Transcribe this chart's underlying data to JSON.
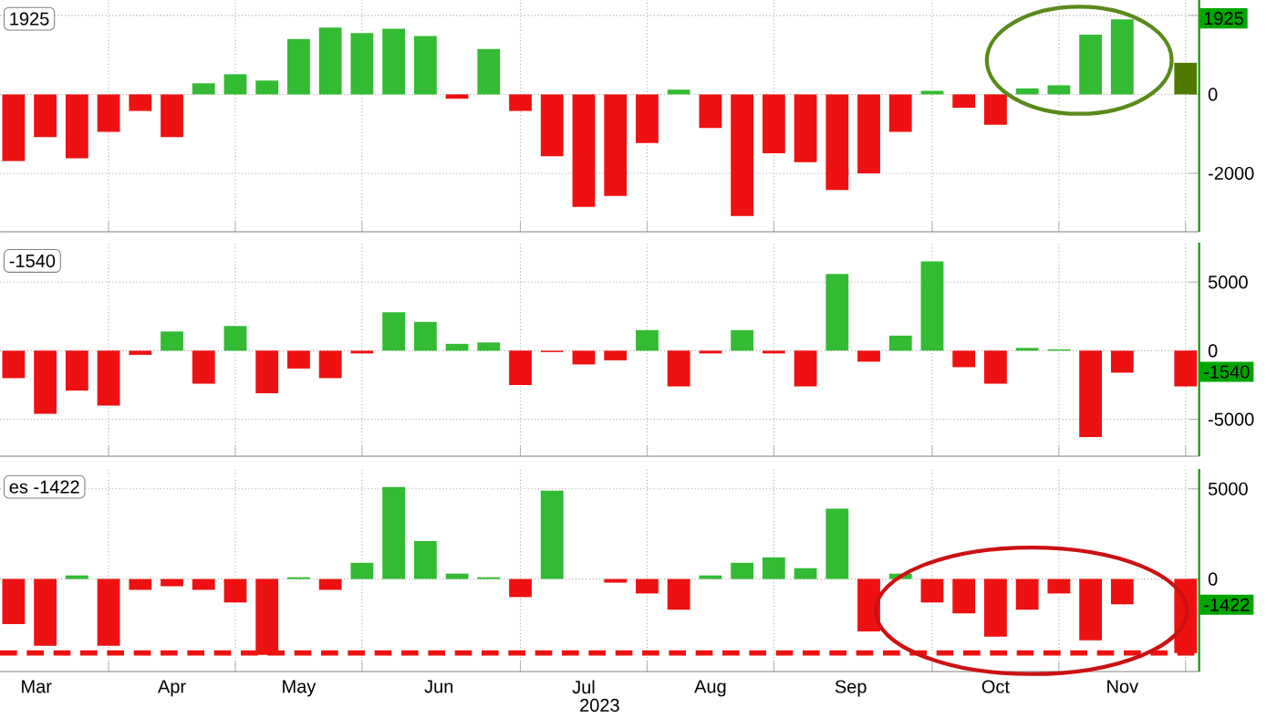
{
  "chart_data": [
    {
      "type": "bar",
      "grid": true,
      "tick_labels": "y",
      "x": [
        "2023-03-17",
        "2023-03-24",
        "2023-03-31",
        "2023-04-07",
        "2023-04-14",
        "2023-04-21",
        "2023-04-28",
        "2023-05-05",
        "2023-05-12",
        "2023-05-19",
        "2023-05-26",
        "2023-06-02",
        "2023-06-09",
        "2023-06-16",
        "2023-06-23",
        "2023-06-30",
        "2023-07-07",
        "2023-07-14",
        "2023-07-21",
        "2023-07-28",
        "2023-08-04",
        "2023-08-11",
        "2023-08-18",
        "2023-08-25",
        "2023-09-01",
        "2023-09-08",
        "2023-09-15",
        "2023-09-22",
        "2023-09-29",
        "2023-10-06",
        "2023-10-13",
        "2023-10-20",
        "2023-10-27",
        "2023-11-03",
        "2023-11-10",
        "2023-11-17",
        "2023-11-24",
        "2023-12-01"
      ],
      "values": [
        -1690,
        -1080,
        -1620,
        -950,
        -420,
        -1080,
        280,
        510,
        350,
        1400,
        1690,
        1550,
        1660,
        1480,
        -110,
        1150,
        -420,
        -1570,
        -2850,
        -2570,
        -1230,
        120,
        -850,
        -3080,
        -1490,
        -1720,
        -2420,
        -2000,
        -950,
        90,
        -340,
        -770,
        150,
        230,
        1510,
        1900,
        null,
        800
      ],
      "colors": [
        "#ee1111",
        "#ee1111",
        "#ee1111",
        "#ee1111",
        "#ee1111",
        "#ee1111",
        "#33bb33",
        "#33bb33",
        "#33bb33",
        "#33bb33",
        "#33bb33",
        "#33bb33",
        "#33bb33",
        "#33bb33",
        "#ee1111",
        "#33bb33",
        "#ee1111",
        "#ee1111",
        "#ee1111",
        "#ee1111",
        "#ee1111",
        "#33bb33",
        "#ee1111",
        "#ee1111",
        "#ee1111",
        "#ee1111",
        "#ee1111",
        "#ee1111",
        "#ee1111",
        "#33bb33",
        "#ee1111",
        "#ee1111",
        "#33bb33",
        "#33bb33",
        "#33bb33",
        "#33bb33",
        null,
        "#4f7a00"
      ],
      "xlim": [
        "2023-03-14",
        "2023-12-04"
      ],
      "xticks": [
        {
          "value": "2023-04-07",
          "label": null
        },
        {
          "value": "2023-05-05",
          "label": null
        },
        {
          "value": "2023-06-02",
          "label": null
        },
        {
          "value": "2023-07-07",
          "label": null
        },
        {
          "value": "2023-08-04",
          "label": null
        },
        {
          "value": "2023-09-01",
          "label": null
        },
        {
          "value": "2023-10-06",
          "label": null
        },
        {
          "value": "2023-11-03",
          "label": null
        },
        {
          "value": "2023-12-01",
          "label": null
        }
      ],
      "ylim": [
        -3480,
        2390
      ],
      "yticks": [
        {
          "value": 2000,
          "label": null
        },
        0,
        -2000
      ],
      "annotations": [
        "1925",
        {
          "text": "1925",
          "y": 1925
        }
      ]
    },
    {
      "type": "bar",
      "grid": true,
      "tick_labels": "y",
      "x": [
        "2023-03-17",
        "2023-03-24",
        "2023-03-31",
        "2023-04-07",
        "2023-04-14",
        "2023-04-21",
        "2023-04-28",
        "2023-05-05",
        "2023-05-12",
        "2023-05-19",
        "2023-05-26",
        "2023-06-02",
        "2023-06-09",
        "2023-06-16",
        "2023-06-23",
        "2023-06-30",
        "2023-07-07",
        "2023-07-14",
        "2023-07-21",
        "2023-07-28",
        "2023-08-04",
        "2023-08-11",
        "2023-08-18",
        "2023-08-25",
        "2023-09-01",
        "2023-09-08",
        "2023-09-15",
        "2023-09-22",
        "2023-09-29",
        "2023-10-06",
        "2023-10-13",
        "2023-10-20",
        "2023-10-27",
        "2023-11-03",
        "2023-11-10",
        "2023-11-17",
        "2023-11-24",
        "2023-12-01"
      ],
      "values": [
        -2000,
        -4600,
        -2900,
        -4000,
        -300,
        1400,
        -2400,
        1800,
        -3100,
        -1300,
        -2000,
        -200,
        2800,
        2100,
        500,
        600,
        -2500,
        -100,
        -1000,
        -700,
        1500,
        -2600,
        -200,
        1500,
        -200,
        -2600,
        5600,
        -800,
        1100,
        6500,
        -1200,
        -2400,
        200,
        100,
        -6300,
        -1600,
        null,
        -2600
      ],
      "colors": [
        "#ee1111",
        "#ee1111",
        "#ee1111",
        "#ee1111",
        "#ee1111",
        "#33bb33",
        "#ee1111",
        "#33bb33",
        "#ee1111",
        "#ee1111",
        "#ee1111",
        "#ee1111",
        "#33bb33",
        "#33bb33",
        "#33bb33",
        "#33bb33",
        "#ee1111",
        "#ee1111",
        "#ee1111",
        "#ee1111",
        "#33bb33",
        "#ee1111",
        "#ee1111",
        "#33bb33",
        "#ee1111",
        "#ee1111",
        "#33bb33",
        "#ee1111",
        "#33bb33",
        "#33bb33",
        "#ee1111",
        "#ee1111",
        "#33bb33",
        "#33bb33",
        "#ee1111",
        "#ee1111",
        null,
        "#ee1111"
      ],
      "xlim": [
        "2023-03-14",
        "2023-12-04"
      ],
      "xticks": [
        {
          "value": "2023-04-07",
          "label": null
        },
        {
          "value": "2023-05-05",
          "label": null
        },
        {
          "value": "2023-06-02",
          "label": null
        },
        {
          "value": "2023-07-07",
          "label": null
        },
        {
          "value": "2023-08-04",
          "label": null
        },
        {
          "value": "2023-09-01",
          "label": null
        },
        {
          "value": "2023-10-06",
          "label": null
        },
        {
          "value": "2023-11-03",
          "label": null
        },
        {
          "value": "2023-12-01",
          "label": null
        }
      ],
      "ylim": [
        -7690,
        7870
      ],
      "yticks": [
        5000,
        0,
        -5000
      ],
      "annotations": [
        "-1540",
        {
          "text": "-1540",
          "y": -1540
        }
      ]
    },
    {
      "type": "bar",
      "grid": true,
      "xlabel": "2023",
      "x": [
        "2023-03-17",
        "2023-03-24",
        "2023-03-31",
        "2023-04-07",
        "2023-04-14",
        "2023-04-21",
        "2023-04-28",
        "2023-05-05",
        "2023-05-12",
        "2023-05-19",
        "2023-05-26",
        "2023-06-02",
        "2023-06-09",
        "2023-06-16",
        "2023-06-23",
        "2023-06-30",
        "2023-07-07",
        "2023-07-14",
        "2023-07-21",
        "2023-07-28",
        "2023-08-04",
        "2023-08-11",
        "2023-08-18",
        "2023-08-25",
        "2023-09-01",
        "2023-09-08",
        "2023-09-15",
        "2023-09-22",
        "2023-09-29",
        "2023-10-06",
        "2023-10-13",
        "2023-10-20",
        "2023-10-27",
        "2023-11-03",
        "2023-11-10",
        "2023-11-17",
        "2023-11-24",
        "2023-12-01"
      ],
      "values": [
        -2500,
        -3700,
        200,
        -3700,
        -600,
        -400,
        -600,
        -1300,
        -4200,
        100,
        -600,
        900,
        5100,
        2100,
        300,
        100,
        -1000,
        4900,
        0,
        -200,
        -800,
        -1700,
        200,
        900,
        1200,
        600,
        3900,
        -2900,
        300,
        -1300,
        -1900,
        -3200,
        -1700,
        -800,
        -3400,
        -1400,
        null,
        -4100
      ],
      "colors": [
        "#ee1111",
        "#ee1111",
        "#33bb33",
        "#ee1111",
        "#ee1111",
        "#ee1111",
        "#ee1111",
        "#ee1111",
        "#ee1111",
        "#33bb33",
        "#ee1111",
        "#33bb33",
        "#33bb33",
        "#33bb33",
        "#33bb33",
        "#33bb33",
        "#ee1111",
        "#33bb33",
        "#33bb33",
        "#ee1111",
        "#ee1111",
        "#ee1111",
        "#33bb33",
        "#33bb33",
        "#33bb33",
        "#33bb33",
        "#33bb33",
        "#ee1111",
        "#33bb33",
        "#ee1111",
        "#ee1111",
        "#ee1111",
        "#ee1111",
        "#ee1111",
        "#ee1111",
        "#ee1111",
        null,
        "#ee1111"
      ],
      "xlim": [
        "2023-03-14",
        "2023-12-04"
      ],
      "xticks": [
        {
          "value": "2023-04-07",
          "label": null
        },
        {
          "value": "2023-05-05",
          "label": null
        },
        {
          "value": "2023-06-02",
          "label": null
        },
        {
          "value": "2023-07-07",
          "label": null
        },
        {
          "value": "2023-08-04",
          "label": null
        },
        {
          "value": "2023-09-01",
          "label": null
        },
        {
          "value": "2023-10-06",
          "label": null
        },
        {
          "value": "2023-11-03",
          "label": null
        },
        {
          "value": "2023-12-01",
          "label": null
        },
        {
          "value": "2023-03-22",
          "label": "Mar"
        },
        {
          "value": "2023-04-21",
          "label": "Apr"
        },
        {
          "value": "2023-05-19",
          "label": "May"
        },
        {
          "value": "2023-06-19",
          "label": "Jun"
        },
        {
          "value": "2023-07-21",
          "label": "Jul"
        },
        {
          "value": "2023-08-18",
          "label": "Aug"
        },
        {
          "value": "2023-09-18",
          "label": "Sep"
        },
        {
          "value": "2023-10-20",
          "label": "Oct"
        },
        {
          "value": "2023-11-17",
          "label": "Nov"
        }
      ],
      "ylim": [
        -5130,
        6100
      ],
      "yticks": [
        5000,
        0
      ],
      "ref_lines": [
        {
          "axis": "y",
          "value": -4100,
          "color": "#ee1111",
          "line_style": "dashed"
        }
      ],
      "annotations": [
        "es -1422",
        {
          "text": "-1422",
          "y": -1422
        }
      ]
    }
  ]
}
